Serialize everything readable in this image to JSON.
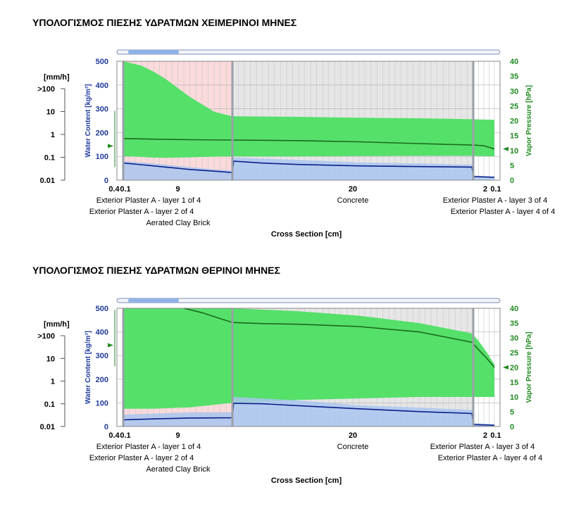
{
  "charts": [
    {
      "title": "ΥΠΟΛΟΓΙΣΜΟΣ ΠΙΕΣΗΣ ΥΔΡΑΤΜΩΝ ΧΕΙΜΕΡΙΝΟΙ ΜΗΝΕΣ",
      "rain_scale_label": "[mm/h]",
      "rain_ticks": [
        ">100",
        "10",
        "1",
        "0.1",
        "0.01"
      ],
      "left_axis_label": "Water Content [kg/m³]",
      "left_ticks": [
        "500",
        "400",
        "300",
        "200",
        "100",
        "0"
      ],
      "right_axis_label": "Vapor Pressure [hPa]",
      "right_ticks": [
        "40",
        "35",
        "30",
        "25",
        "20",
        "15",
        "10",
        "5",
        "0"
      ],
      "layer_thickness_labels": [
        "0.4",
        "0.1",
        "9",
        "20",
        "2",
        "0.1"
      ],
      "layer_names_left": [
        "Exterior Plaster A  - layer 1 of 4",
        "Exterior Plaster A  - layer 2 of 4",
        "Aerated Clay Brick"
      ],
      "layer_names_center": [
        "Concrete"
      ],
      "layer_names_right": [
        "Exterior Plaster A  - layer 3 of 4",
        "Exterior Plaster A  - layer 4 of 4"
      ],
      "x_axis_label": "Cross Section [cm]"
    },
    {
      "title": "ΥΠΟΛΟΓΙΣΜΟΣ ΠΙΕΣΗΣ ΥΔΡΑΤΜΩΝ ΘΕΡΙΝΟΙ ΜΗΝΕΣ",
      "rain_scale_label": "[mm/h]",
      "rain_ticks": [
        ">100",
        "10",
        "1",
        "0.1",
        "0.01"
      ],
      "left_axis_label": "Water Content [kg/m³]",
      "left_ticks": [
        "500",
        "400",
        "300",
        "200",
        "100",
        "0"
      ],
      "right_axis_label": "Vapor Pressure [hPa]",
      "right_ticks": [
        "40",
        "35",
        "30",
        "25",
        "20",
        "15",
        "10",
        "5",
        "0"
      ],
      "layer_thickness_labels": [
        "0.4",
        "0.1",
        "9",
        "20",
        "2",
        "0.1"
      ],
      "layer_names_left": [
        "Exterior Plaster A  - layer 1 of 4",
        "Exterior Plaster A  - layer 2 of 4",
        "Aerated Clay Brick"
      ],
      "layer_names_center": [
        "Concrete"
      ],
      "layer_names_right": [
        "Exterior Plaster A  - layer 3 of 4",
        "Exterior Plaster A  - layer 4 of 4"
      ],
      "x_axis_label": "Cross Section [cm]"
    }
  ],
  "colors": {
    "vapor_band": "#55e06a",
    "vapor_line": "#1a6b1a",
    "water_fill": "#a9c6ee",
    "water_line": "#0a1f8a",
    "brick_bg": "#fadadb",
    "concrete_bg": "#e6e6e6",
    "plaster_bg": "#ffffff",
    "left_axis": "#1f3a9e",
    "right_axis": "#1f8a1f"
  },
  "chart_data": [
    {
      "type": "area",
      "title": "ΥΠΟΛΟΓΙΣΜΟΣ ΠΙΕΣΗΣ ΥΔΡΑΤΜΩΝ ΧΕΙΜΕΡΙΝΟΙ ΜΗΝΕΣ",
      "xlabel": "Cross Section [cm]",
      "x_unit": "cm",
      "xlim": [
        0,
        31.6
      ],
      "layers": [
        {
          "name": "Exterior Plaster A  - layer 1 of 4",
          "thickness": 0.4
        },
        {
          "name": "Exterior Plaster A  - layer 2 of 4",
          "thickness": 0.1
        },
        {
          "name": "Aerated Clay Brick",
          "thickness": 9
        },
        {
          "name": "Concrete",
          "thickness": 20
        },
        {
          "name": "Exterior Plaster A  - layer 3 of 4",
          "thickness": 2
        },
        {
          "name": "Exterior Plaster A  - layer 4 of 4",
          "thickness": 0.1
        }
      ],
      "ylabel_left": "Water Content [kg/m³]",
      "ylim_left": [
        0,
        500
      ],
      "ylabel_right": "Vapor Pressure [hPa]",
      "ylim_right": [
        0,
        40
      ],
      "series": [
        {
          "name": "Vapor Pressure (range)",
          "axis": "right",
          "x": [
            0.5,
            1,
            2,
            3,
            4,
            5,
            6,
            7,
            8,
            9.5,
            15,
            20,
            25,
            29.4,
            31.5
          ],
          "upper": [
            40,
            39.5,
            38.5,
            36.5,
            34,
            31,
            28,
            25.5,
            23,
            21.5,
            21.3,
            21,
            20.8,
            20.5,
            20.3
          ],
          "lower": [
            8,
            8,
            7.8,
            7.6,
            7.5,
            7.6,
            7.7,
            7.8,
            7.9,
            8,
            8,
            8.1,
            8.2,
            8.2,
            8
          ]
        },
        {
          "name": "Vapor Pressure (mean)",
          "axis": "right",
          "x": [
            0.5,
            3,
            6,
            9.5,
            15,
            20,
            25,
            29.4,
            30.5,
            31.5
          ],
          "values": [
            14,
            13.8,
            13.6,
            13.5,
            13.3,
            12.9,
            12.3,
            11.8,
            11.6,
            10.5
          ]
        },
        {
          "name": "Water Content (range)",
          "axis": "left",
          "x": [
            0.5,
            2,
            4,
            6,
            8,
            9.5,
            9.6,
            15,
            20,
            25,
            29.4,
            29.5,
            31.5
          ],
          "upper": [
            80,
            75,
            65,
            55,
            45,
            40,
            95,
            85,
            75,
            70,
            65,
            20,
            15
          ],
          "lower": [
            0,
            0,
            0,
            0,
            0,
            0,
            0,
            0,
            0,
            0,
            0,
            0,
            0
          ]
        },
        {
          "name": "Water Content (mean)",
          "axis": "left",
          "x": [
            0.5,
            2,
            4,
            6,
            8,
            9.5,
            9.6,
            12,
            15,
            20,
            25,
            29.4,
            29.5,
            31.5
          ],
          "values": [
            72,
            65,
            55,
            45,
            38,
            32,
            80,
            72,
            66,
            60,
            57,
            55,
            15,
            12
          ]
        }
      ]
    },
    {
      "type": "area",
      "title": "ΥΠΟΛΟΓΙΣΜΟΣ ΠΙΕΣΗΣ ΥΔΡΑΤΜΩΝ ΘΕΡΙΝΟΙ ΜΗΝΕΣ",
      "xlabel": "Cross Section [cm]",
      "x_unit": "cm",
      "xlim": [
        0,
        31.6
      ],
      "layers": [
        {
          "name": "Exterior Plaster A  - layer 1 of 4",
          "thickness": 0.4
        },
        {
          "name": "Exterior Plaster A  - layer 2 of 4",
          "thickness": 0.1
        },
        {
          "name": "Aerated Clay Brick",
          "thickness": 9
        },
        {
          "name": "Concrete",
          "thickness": 20
        },
        {
          "name": "Exterior Plaster A  - layer 3 of 4",
          "thickness": 2
        },
        {
          "name": "Exterior Plaster A  - layer 4 of 4",
          "thickness": 0.1
        }
      ],
      "ylabel_left": "Water Content [kg/m³]",
      "ylim_left": [
        0,
        500
      ],
      "ylabel_right": "Vapor Pressure [hPa]",
      "ylim_right": [
        0,
        40
      ],
      "series": [
        {
          "name": "Vapor Pressure (range)",
          "axis": "right",
          "x": [
            0.5,
            3,
            6,
            9.5,
            15,
            20,
            25,
            29.4,
            30,
            30.8,
            31.5
          ],
          "upper": [
            40,
            40,
            40,
            40,
            39,
            37.5,
            35,
            31.5,
            29,
            25,
            21
          ],
          "lower": [
            6,
            6,
            6.5,
            8,
            9,
            9.5,
            10,
            10,
            10,
            10,
            10
          ]
        },
        {
          "name": "Vapor Pressure (mean)",
          "axis": "right",
          "x": [
            5.5,
            7,
            8.5,
            9.5,
            12,
            15,
            20,
            25,
            29.4,
            30,
            30.8,
            31.5
          ],
          "values": [
            40,
            38.5,
            36.5,
            35.2,
            34.8,
            34.6,
            33.8,
            32,
            28.5,
            26,
            23,
            20
          ]
        },
        {
          "name": "Water Content (range)",
          "axis": "left",
          "x": [
            0.5,
            3,
            6,
            9.5,
            9.6,
            15,
            20,
            25,
            29.4,
            29.5,
            31.5
          ],
          "upper": [
            50,
            55,
            60,
            60,
            125,
            110,
            90,
            80,
            70,
            15,
            10
          ],
          "lower": [
            0,
            0,
            0,
            0,
            0,
            0,
            0,
            0,
            0,
            0,
            0
          ]
        },
        {
          "name": "Water Content (mean)",
          "axis": "left",
          "x": [
            0.5,
            3,
            6,
            9.5,
            9.6,
            12,
            15,
            20,
            25,
            29.4,
            29.5,
            31.5
          ],
          "values": [
            28,
            32,
            36,
            37,
            98,
            96,
            88,
            75,
            63,
            55,
            8,
            5
          ]
        }
      ]
    }
  ]
}
